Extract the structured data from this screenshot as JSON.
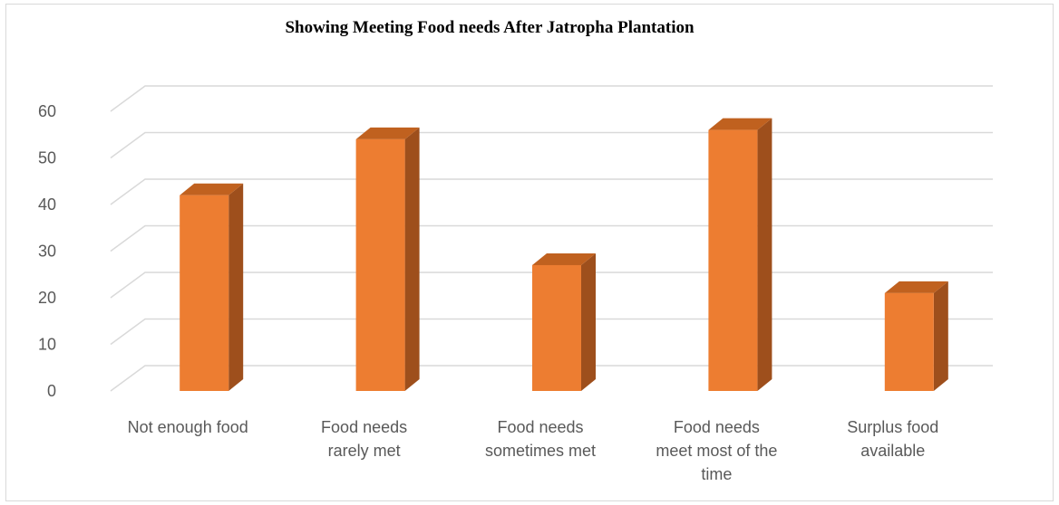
{
  "chart_data": {
    "type": "bar",
    "title": "Showing Meeting Food needs After Jatropha Plantation",
    "categories": [
      [
        "Not enough food"
      ],
      [
        "Food needs",
        "rarely met"
      ],
      [
        "Food needs",
        "sometimes met"
      ],
      [
        "Food needs",
        "meet most of the",
        "time"
      ],
      [
        "Surplus food",
        "available"
      ]
    ],
    "values": [
      42,
      54,
      27,
      56,
      21
    ],
    "ylim": [
      0,
      60
    ],
    "yticks": [
      0,
      10,
      20,
      30,
      40,
      50,
      60
    ],
    "grid": true,
    "style": "3d-column",
    "colors": {
      "bar_front": "#ED7D31",
      "bar_side": "#9E4F1C",
      "bar_top": "#C0611F",
      "grid": "#d9d9d9"
    }
  }
}
